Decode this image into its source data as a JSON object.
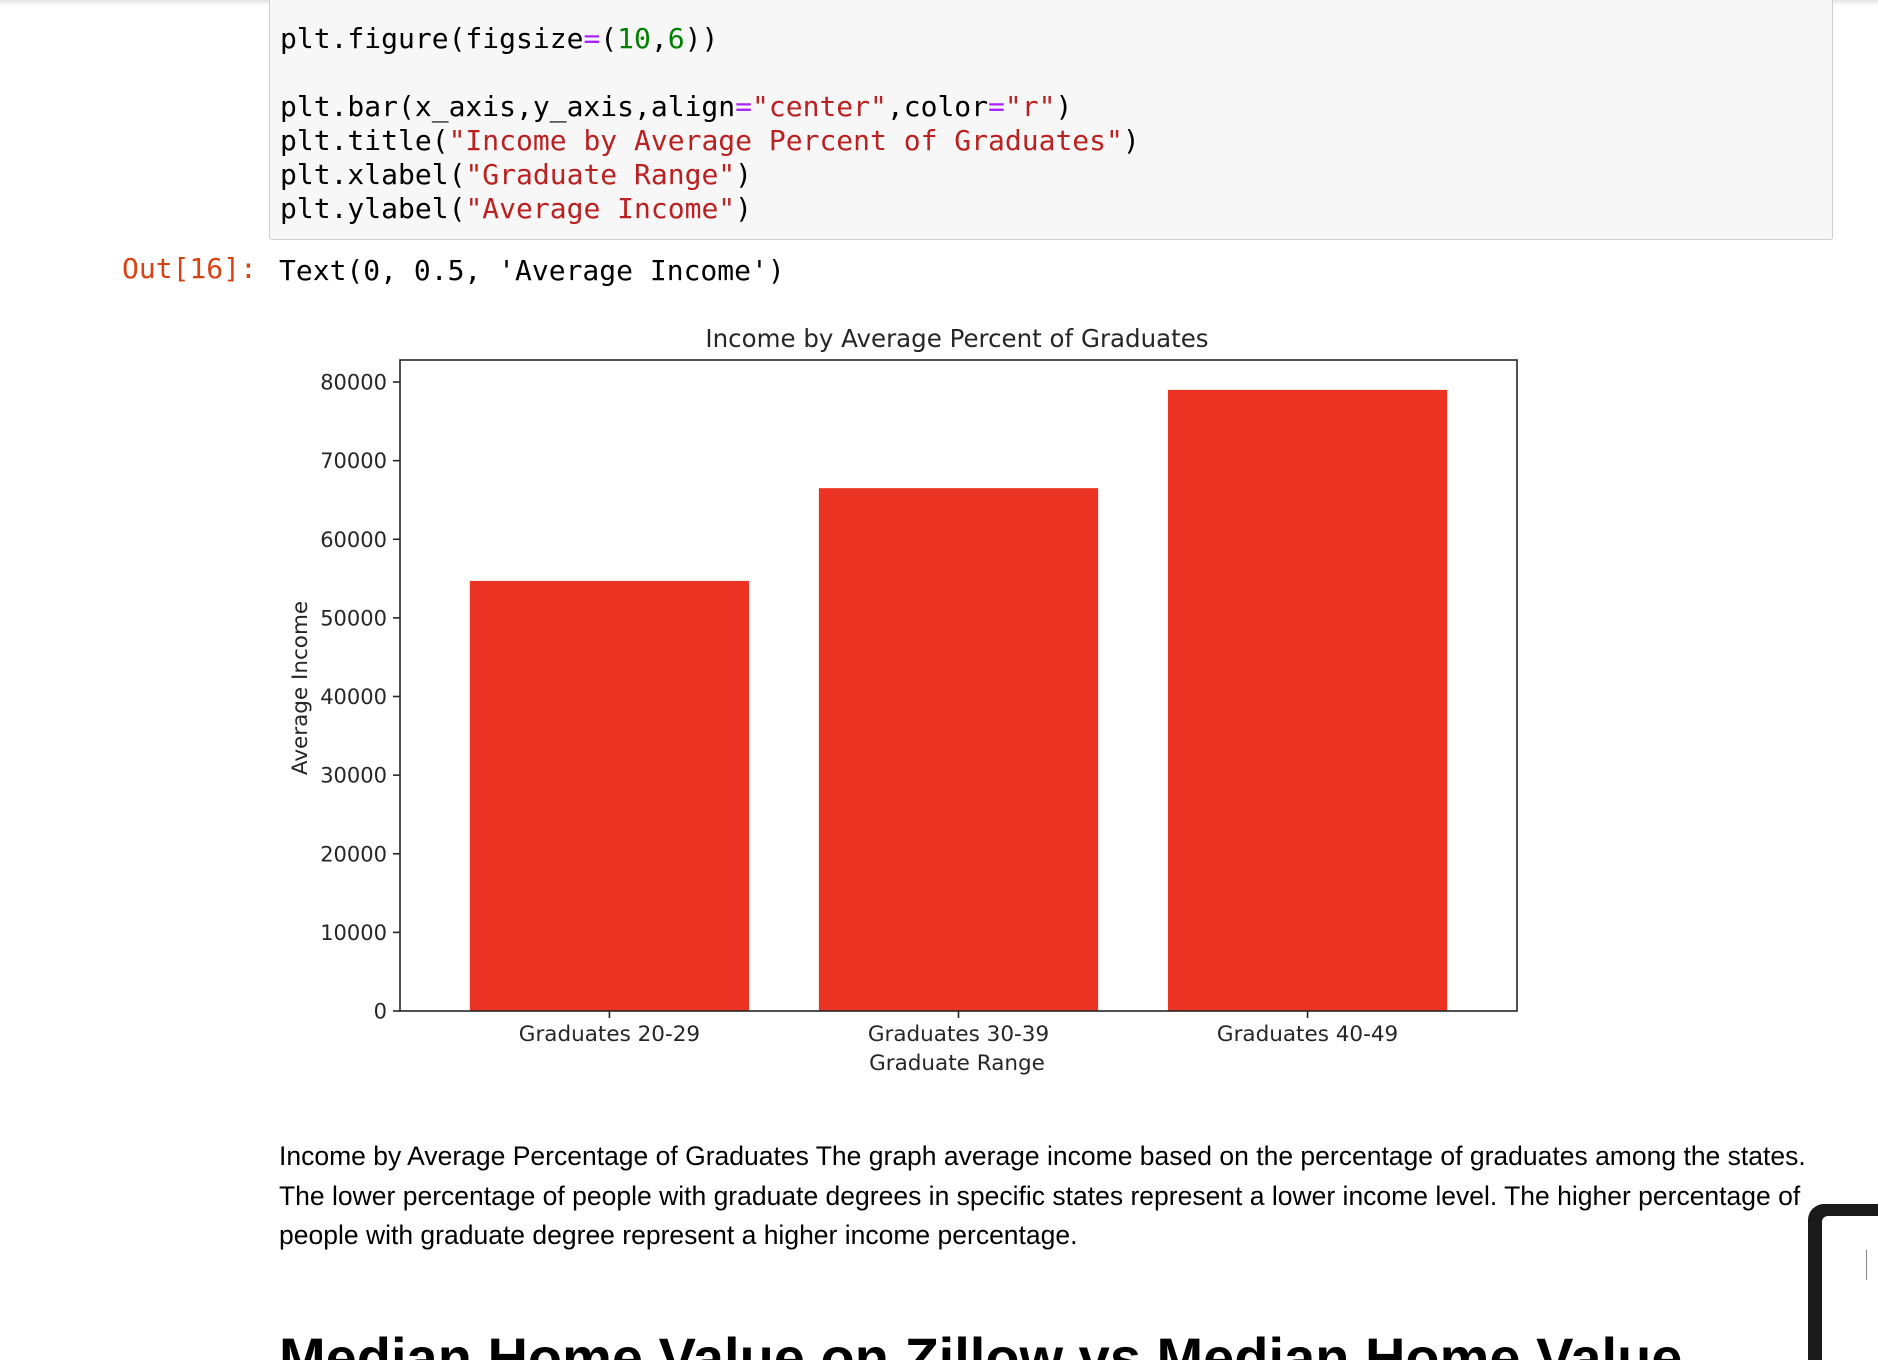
{
  "code_cell": {
    "lines": [
      [
        {
          "t": "plt.figure(figsize"
        },
        {
          "t": "=",
          "c": "tok-op"
        },
        {
          "t": "("
        },
        {
          "t": "10",
          "c": "tok-num"
        },
        {
          "t": ","
        },
        {
          "t": "6",
          "c": "tok-num"
        },
        {
          "t": "))"
        }
      ],
      [],
      [
        {
          "t": "plt.bar(x_axis,y_axis,align"
        },
        {
          "t": "=",
          "c": "tok-op"
        },
        {
          "t": "\"center\"",
          "c": "tok-str"
        },
        {
          "t": ",color"
        },
        {
          "t": "=",
          "c": "tok-op"
        },
        {
          "t": "\"r\"",
          "c": "tok-str"
        },
        {
          "t": ")"
        }
      ],
      [
        {
          "t": "plt.title("
        },
        {
          "t": "\"Income by Average Percent of Graduates\"",
          "c": "tok-str"
        },
        {
          "t": ")"
        }
      ],
      [
        {
          "t": "plt.xlabel("
        },
        {
          "t": "\"Graduate Range\"",
          "c": "tok-str"
        },
        {
          "t": ")"
        }
      ],
      [
        {
          "t": "plt.ylabel("
        },
        {
          "t": "\"Average Income\"",
          "c": "tok-str"
        },
        {
          "t": ")"
        }
      ]
    ]
  },
  "output": {
    "prompt": "Out[16]:",
    "text": "Text(0, 0.5, 'Average Income')"
  },
  "chart_data": {
    "type": "bar",
    "title": "Income by Average Percent of Graduates",
    "xlabel": "Graduate Range",
    "ylabel": "Average Income",
    "categories": [
      "Graduates 20-29",
      "Graduates 30-39",
      "Graduates 40-49"
    ],
    "values": [
      54700,
      66500,
      79000
    ],
    "ylim": [
      0,
      82800
    ],
    "yticks": [
      0,
      10000,
      20000,
      30000,
      40000,
      50000,
      60000,
      70000,
      80000
    ],
    "color": "#ea3323",
    "grid": false
  },
  "markdown": {
    "paragraph": "Income by Average Percentage of Graduates The graph average income based on the percentage of graduates among the states. The lower percentage of people with graduate degrees in specific states represent a lower income level. The higher percentage of people with graduate degree represent a higher income percentage.",
    "heading": "Median Home Value on Zillow vs Median Home Value"
  }
}
